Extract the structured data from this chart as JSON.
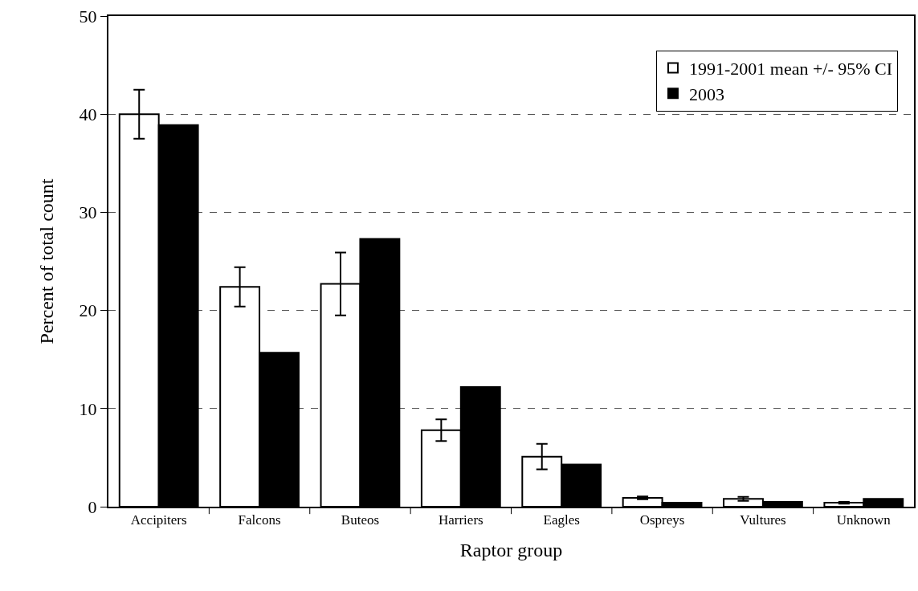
{
  "chart_data": {
    "type": "bar",
    "xlabel": "Raptor group",
    "ylabel": "Percent of total count",
    "categories": [
      "Accipiters",
      "Falcons",
      "Buteos",
      "Harriers",
      "Eagles",
      "Ospreys",
      "Vultures",
      "Unknown"
    ],
    "series": [
      {
        "name": "1991-2001 mean +/- 95% CI",
        "color": "#ffffff",
        "values": [
          40.0,
          22.4,
          22.7,
          7.8,
          5.1,
          0.9,
          0.8,
          0.4
        ],
        "errors": [
          2.5,
          2.0,
          3.2,
          1.1,
          1.3,
          0.15,
          0.2,
          0.1
        ]
      },
      {
        "name": "2003",
        "color": "#000000",
        "values": [
          38.9,
          15.7,
          27.3,
          12.2,
          4.3,
          0.4,
          0.5,
          0.8
        ]
      }
    ],
    "ylim": [
      0,
      50
    ],
    "yticks": [
      0,
      10,
      20,
      30,
      40,
      50
    ],
    "grid": "y",
    "legend": "top right"
  }
}
